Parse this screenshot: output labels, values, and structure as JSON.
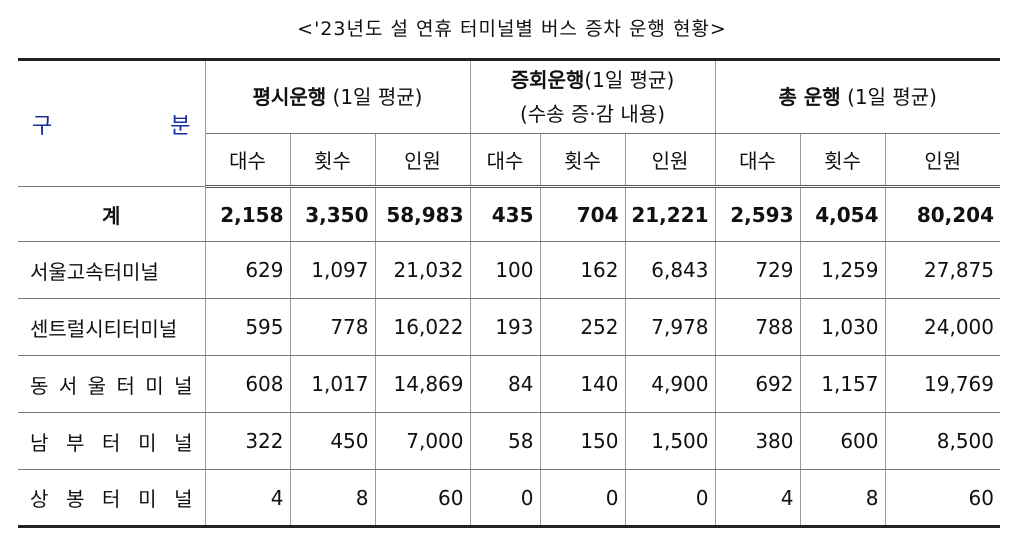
{
  "title": "<'23년도 설 연휴 터미널별 버스 증차 운행 현황>",
  "table": {
    "corner": "구 분",
    "groups": [
      {
        "name": "평시운행",
        "note": "(1일 평균)"
      },
      {
        "name": "증회운행",
        "note": "(1일 평균)",
        "note2": "(수송 증·감 내용)"
      },
      {
        "name": "총 운행",
        "note": "(1일 평균)"
      }
    ],
    "subheaders": [
      "대수",
      "횟수",
      "인원",
      "대수",
      "횟수",
      "인원",
      "대수",
      "횟수",
      "인원"
    ],
    "rows": [
      [
        "계",
        "2,158",
        "3,350",
        "58,983",
        "435",
        "704",
        "21,221",
        "2,593",
        "4,054",
        "80,204"
      ],
      [
        "서울고속터미널",
        "629",
        "1,097",
        "21,032",
        "100",
        "162",
        "6,843",
        "729",
        "1,259",
        "27,875"
      ],
      [
        "센트럴시티터미널",
        "595",
        "778",
        "16,022",
        "193",
        "252",
        "7,978",
        "788",
        "1,030",
        "24,000"
      ],
      [
        "동 서 울 터 미 널",
        "608",
        "1,017",
        "14,869",
        "84",
        "140",
        "4,900",
        "692",
        "1,157",
        "19,769"
      ],
      [
        "남 부 터 미 널",
        "322",
        "450",
        "7,000",
        "58",
        "150",
        "1,500",
        "380",
        "600",
        "8,500"
      ],
      [
        "상 봉 터 미 널",
        "4",
        "8",
        "60",
        "0",
        "0",
        "0",
        "4",
        "8",
        "60"
      ]
    ]
  }
}
